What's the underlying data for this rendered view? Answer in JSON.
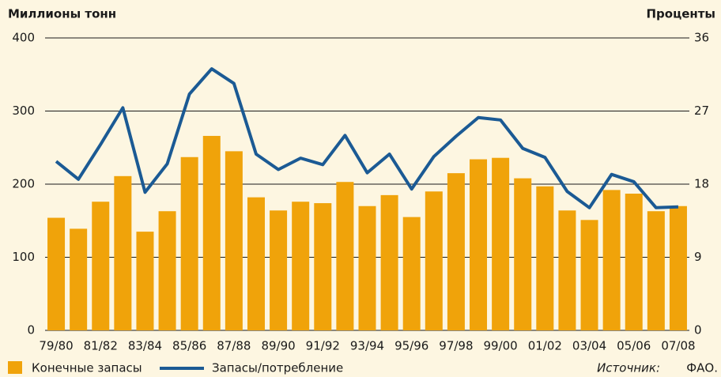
{
  "chart_data": {
    "type": "bar_line",
    "left_axis_label": "Миллионы тонн",
    "right_axis_label": "Проценты",
    "categories": [
      "79/80",
      null,
      "81/82",
      null,
      "83/84",
      null,
      "85/86",
      null,
      "87/88",
      null,
      "89/90",
      null,
      "91/92",
      null,
      "93/94",
      null,
      "95/96",
      null,
      "97/98",
      null,
      "99/00",
      null,
      "01/02",
      null,
      "03/04",
      null,
      "05/06",
      null,
      "07/08"
    ],
    "series": [
      {
        "name": "Конечные запасы",
        "color": "#f0a30a",
        "type": "bar",
        "values": [
          154,
          139,
          176,
          211,
          135,
          163,
          237,
          266,
          245,
          182,
          164,
          176,
          174,
          203,
          170,
          185,
          155,
          190,
          215,
          234,
          236,
          208,
          197,
          164,
          151,
          192,
          187,
          163,
          170
        ]
      },
      {
        "name": "Запасы/потребление",
        "color": "#1b5a94",
        "type": "line",
        "axis": "y2",
        "values": [
          20.8,
          18.6,
          22.9,
          27.4,
          17.0,
          20.5,
          29.1,
          32.2,
          30.4,
          21.7,
          19.8,
          21.2,
          20.4,
          24.0,
          19.4,
          21.7,
          17.4,
          21.4,
          23.9,
          26.2,
          25.9,
          22.4,
          21.3,
          17.1,
          15.1,
          19.2,
          18.3,
          15.1,
          15.2
        ]
      }
    ],
    "ylim": [
      0,
      400
    ],
    "yticks": [
      0,
      100,
      200,
      300,
      400
    ],
    "y2lim": [
      0,
      36
    ],
    "y2ticks": [
      0,
      9,
      18,
      27,
      36
    ],
    "grid": true,
    "source_label": "Источник:",
    "source": "ФАО."
  }
}
